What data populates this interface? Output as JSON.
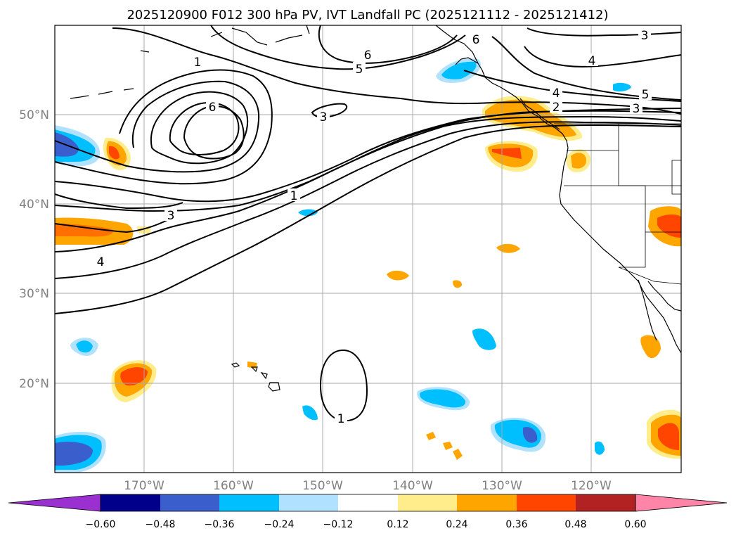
{
  "title": "2025120900 F012 300 hPa PV, IVT Landfall PC (2025121112 - 2025121412)",
  "axes": {
    "lon_labels": [
      "170°W",
      "160°W",
      "150°W",
      "140°W",
      "130°W",
      "120°W"
    ],
    "lat_labels": [
      "50°N",
      "40°N",
      "30°N",
      "20°N"
    ]
  },
  "colorbar": {
    "ticks": [
      "−0.60",
      "−0.48",
      "−0.36",
      "−0.24",
      "−0.12",
      "0.12",
      "0.24",
      "0.36",
      "0.48",
      "0.60"
    ],
    "colors": [
      "#9b30d0",
      "#00008b",
      "#3a5fcd",
      "#00bfff",
      "#b0e2ff",
      "#ffffff",
      "#ffec8b",
      "#ffa500",
      "#ff4500",
      "#b22222",
      "#ff85a8"
    ]
  },
  "contour_labels": {
    "c1": "1",
    "c2": "2",
    "c3": "3",
    "c4": "4",
    "c5": "5",
    "c6": "6"
  },
  "chart_data": {
    "type": "map",
    "title": "2025120900 F012 300 hPa PV, IVT Landfall PC (2025121112 - 2025121412)",
    "lon_range": [
      -180,
      -110
    ],
    "lat_range": [
      10,
      60
    ],
    "contour_field": "300 hPa PV",
    "contour_levels": [
      1,
      2,
      3,
      4,
      5,
      6
    ],
    "fill_field": "IVT Landfall PC",
    "fill_levels": [
      -0.6,
      -0.48,
      -0.36,
      -0.24,
      -0.12,
      0.12,
      0.24,
      0.36,
      0.48,
      0.6
    ]
  }
}
